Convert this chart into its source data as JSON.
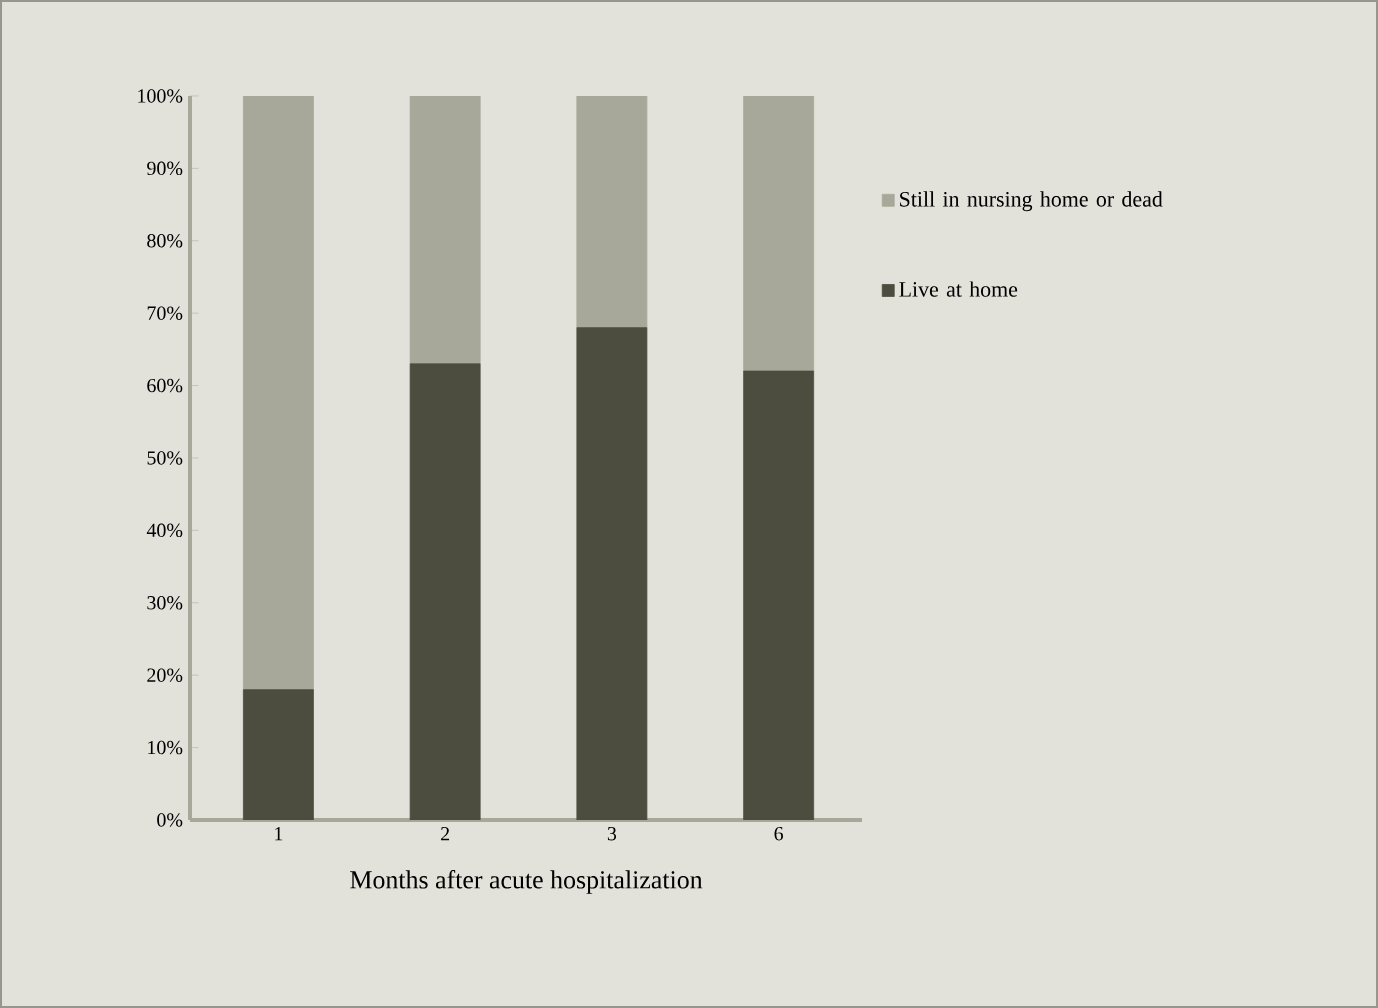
{
  "chart_data": {
    "type": "bar",
    "stacked": true,
    "xlabel": "Months after acute hospitalization",
    "categories": [
      "1",
      "2",
      "3",
      "6"
    ],
    "series": [
      {
        "name": "Live at home",
        "color": "#4d4d3f",
        "values": [
          18,
          63,
          68,
          62
        ]
      },
      {
        "name": "Still in nursing home or dead",
        "color": "#a8a89a",
        "values": [
          82,
          37,
          32,
          38
        ]
      }
    ],
    "ylim": [
      0,
      100
    ],
    "yticks": [
      {
        "value": 0,
        "label": "0%"
      },
      {
        "value": 10,
        "label": "10%"
      },
      {
        "value": 20,
        "label": "20%"
      },
      {
        "value": 30,
        "label": "30%"
      },
      {
        "value": 40,
        "label": "40%"
      },
      {
        "value": 50,
        "label": "50%"
      },
      {
        "value": 60,
        "label": "60%"
      },
      {
        "value": 70,
        "label": "70%"
      },
      {
        "value": 80,
        "label": "80%"
      },
      {
        "value": 90,
        "label": "90%"
      },
      {
        "value": 100,
        "label": "100%"
      }
    ],
    "grid": false,
    "legend": "right"
  }
}
